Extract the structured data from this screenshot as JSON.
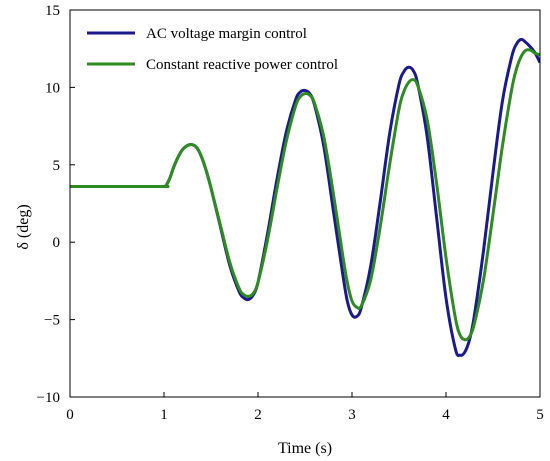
{
  "chart_data": {
    "type": "line",
    "title": "",
    "xlabel": "Time (s)",
    "ylabel": "δ (deg)",
    "xlim": [
      0,
      5
    ],
    "ylim": [
      -10,
      15
    ],
    "x_ticks": [
      0,
      1,
      2,
      3,
      4,
      5
    ],
    "y_ticks": [
      -10,
      -5,
      0,
      5,
      10,
      15
    ],
    "x_tick_labels": [
      "0",
      "1",
      "2",
      "3",
      "4",
      "5"
    ],
    "y_tick_labels": [
      "−10",
      "−5",
      "0",
      "5",
      "10",
      "15"
    ],
    "grid": false,
    "legend_position": "top-left",
    "series": [
      {
        "name": "AC voltage margin control",
        "color": "#1a1a8c",
        "x": [
          0,
          0.5,
          1.0,
          1.02,
          1.06,
          1.1,
          1.15,
          1.2,
          1.25,
          1.3,
          1.35,
          1.4,
          1.45,
          1.5,
          1.6,
          1.7,
          1.8,
          1.85,
          1.9,
          1.95,
          2.0,
          2.1,
          2.2,
          2.3,
          2.4,
          2.45,
          2.5,
          2.55,
          2.6,
          2.7,
          2.8,
          2.9,
          2.95,
          3.0,
          3.05,
          3.1,
          3.2,
          3.3,
          3.4,
          3.5,
          3.55,
          3.6,
          3.65,
          3.7,
          3.8,
          3.9,
          4.0,
          4.1,
          4.15,
          4.2,
          4.25,
          4.3,
          4.4,
          4.5,
          4.6,
          4.7,
          4.75,
          4.8,
          4.85,
          4.9,
          4.95,
          5.0
        ],
        "y": [
          3.6,
          3.6,
          3.6,
          3.65,
          4.1,
          4.8,
          5.5,
          6.0,
          6.25,
          6.3,
          6.1,
          5.5,
          4.6,
          3.5,
          1.0,
          -1.5,
          -3.2,
          -3.6,
          -3.7,
          -3.4,
          -2.6,
          0.5,
          4.0,
          7.1,
          9.2,
          9.7,
          9.8,
          9.6,
          8.9,
          6.2,
          2.1,
          -2.0,
          -3.8,
          -4.7,
          -4.8,
          -4.2,
          -1.5,
          2.6,
          7.0,
          10.2,
          11.0,
          11.3,
          11.1,
          10.2,
          6.8,
          1.6,
          -3.6,
          -6.9,
          -7.3,
          -7.1,
          -6.3,
          -4.8,
          -0.5,
          4.5,
          9.1,
          12.0,
          12.8,
          13.1,
          12.9,
          12.6,
          12.2,
          11.6
        ]
      },
      {
        "name": "Constant reactive power control",
        "color": "#2e8b22",
        "x": [
          0,
          0.5,
          1.0,
          1.02,
          1.06,
          1.1,
          1.15,
          1.2,
          1.25,
          1.3,
          1.35,
          1.4,
          1.45,
          1.5,
          1.6,
          1.7,
          1.8,
          1.85,
          1.9,
          1.95,
          2.0,
          2.1,
          2.2,
          2.3,
          2.4,
          2.45,
          2.5,
          2.55,
          2.6,
          2.7,
          2.8,
          2.9,
          2.95,
          3.0,
          3.05,
          3.1,
          3.2,
          3.3,
          3.4,
          3.5,
          3.55,
          3.6,
          3.65,
          3.7,
          3.8,
          3.9,
          4.0,
          4.1,
          4.15,
          4.2,
          4.25,
          4.3,
          4.4,
          4.5,
          4.6,
          4.7,
          4.75,
          4.8,
          4.85,
          4.9,
          4.95,
          5.0
        ],
        "y": [
          3.6,
          3.6,
          3.6,
          3.65,
          4.1,
          4.8,
          5.5,
          6.0,
          6.25,
          6.3,
          6.1,
          5.5,
          4.6,
          3.5,
          1.1,
          -1.3,
          -3.0,
          -3.4,
          -3.5,
          -3.3,
          -2.6,
          0.1,
          3.4,
          6.5,
          8.8,
          9.4,
          9.6,
          9.5,
          9.0,
          6.8,
          3.2,
          -0.8,
          -2.6,
          -3.8,
          -4.2,
          -4.1,
          -2.4,
          1.0,
          5.0,
          8.6,
          9.7,
          10.3,
          10.5,
          10.1,
          7.9,
          3.8,
          -1.0,
          -4.9,
          -6.0,
          -6.3,
          -6.1,
          -5.3,
          -2.4,
          1.8,
          6.2,
          9.9,
          11.2,
          12.0,
          12.4,
          12.4,
          12.2,
          12.1
        ]
      }
    ]
  }
}
